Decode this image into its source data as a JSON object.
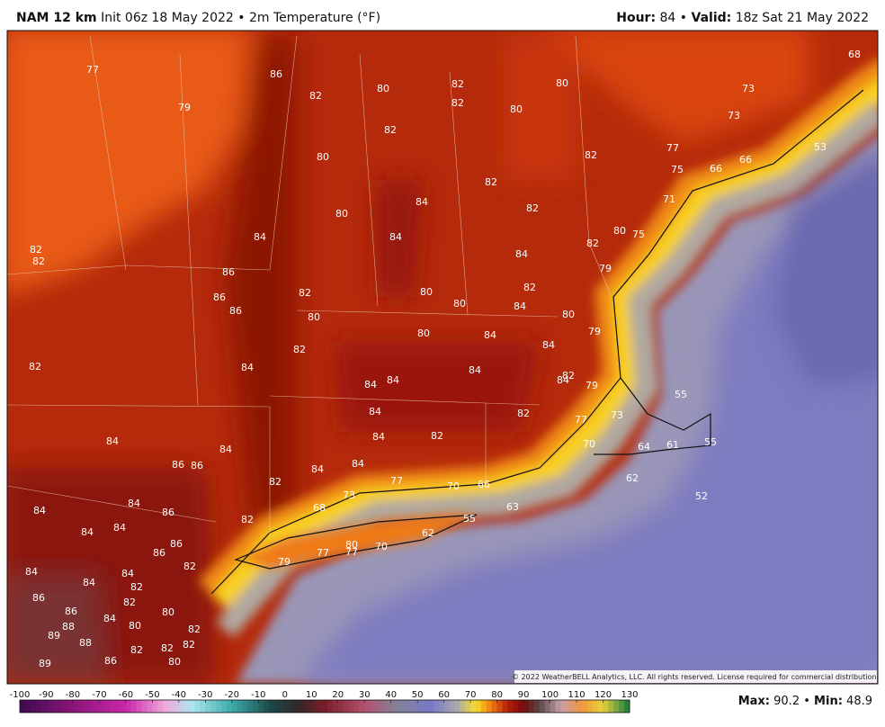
{
  "header": {
    "model": "NAM 12 km",
    "subtitle": "Init 06z 18 May 2022 • 2m Temperature (°F)",
    "hour_label": "Hour:",
    "hour": 84,
    "separator": "•",
    "valid_label": "Valid:",
    "valid": "18z Sat 21 May 2022"
  },
  "copyright": "© 2022 WeatherBELL Analytics, LLC. All rights reserved. License required for commercial distribution.",
  "map_labels": [
    77,
    86,
    79,
    82,
    80,
    82,
    82,
    80,
    80,
    68,
    73,
    73,
    82,
    80,
    82,
    77,
    75,
    66,
    66,
    53,
    82,
    84,
    82,
    71,
    80,
    84,
    84,
    80,
    75,
    82,
    82,
    82,
    86,
    84,
    79,
    86,
    86,
    82,
    80,
    80,
    82,
    84,
    80,
    80,
    79,
    80,
    84,
    84,
    82,
    82,
    84,
    84,
    82,
    84,
    79,
    84,
    84,
    55,
    84,
    82,
    77,
    73,
    84,
    82,
    84,
    84,
    86,
    86,
    70,
    64,
    61,
    55,
    84,
    84,
    82,
    77,
    70,
    66,
    62,
    84,
    86,
    84,
    73,
    68,
    63,
    52,
    84,
    84,
    86,
    86,
    82,
    55,
    62,
    80,
    77,
    70,
    77,
    79,
    84,
    84,
    82,
    82,
    82,
    86,
    84,
    86,
    84,
    80,
    80,
    88,
    89,
    88,
    82,
    82,
    82,
    82,
    86,
    80,
    89
  ],
  "colorbar": {
    "ticks": [
      -100,
      -90,
      -80,
      -70,
      -60,
      -50,
      -40,
      -30,
      -20,
      -10,
      0,
      10,
      20,
      30,
      40,
      50,
      60,
      70,
      80,
      90,
      100,
      110,
      120,
      130
    ]
  },
  "footer": {
    "max_label": "Max:",
    "max": 90.2,
    "separator": "•",
    "min_label": "Min:",
    "min": 48.9
  }
}
